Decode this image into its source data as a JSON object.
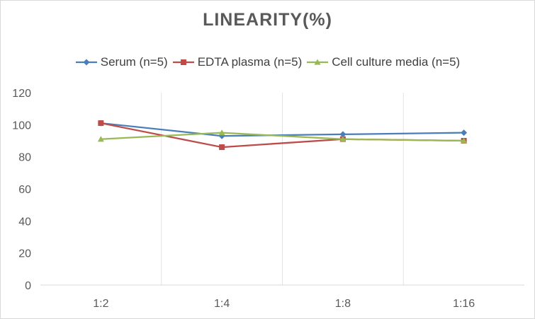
{
  "chart_data": {
    "type": "line",
    "title": "LINEARITY(%)",
    "categories": [
      "1:2",
      "1:4",
      "1:8",
      "1:16"
    ],
    "ylim": [
      0,
      120
    ],
    "yticks": [
      0,
      20,
      40,
      60,
      80,
      100,
      120
    ],
    "grid": "vertical",
    "legend_position": "top",
    "series": [
      {
        "name": "Serum (n=5)",
        "values": [
          101,
          93,
          94,
          95
        ],
        "color": "#4a7ebb",
        "marker": "diamond"
      },
      {
        "name": "EDTA plasma (n=5)",
        "values": [
          101,
          86,
          91,
          90
        ],
        "color": "#be4b48",
        "marker": "square"
      },
      {
        "name": "Cell culture media (n=5)",
        "values": [
          91,
          95,
          91,
          90
        ],
        "color": "#98b954",
        "marker": "triangle"
      }
    ]
  }
}
